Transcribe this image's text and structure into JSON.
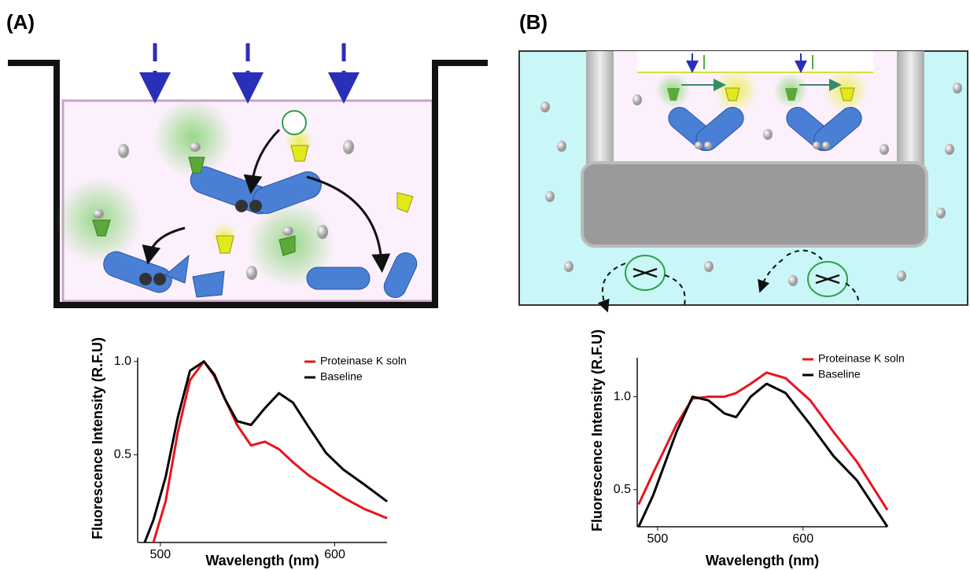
{
  "panel_labels": [
    "(A)",
    "(B)"
  ],
  "chart_data": [
    {
      "type": "line",
      "x_label": "Wavelength (nm)",
      "y_label": "Fluorescence Intensity (R.F.U)",
      "x": [
        491,
        496,
        503,
        510,
        517,
        525,
        531,
        537,
        544,
        552,
        560,
        568,
        576,
        585,
        595,
        605,
        617,
        630
      ],
      "series": [
        {
          "name": "Proteinase K soln",
          "color": "#e8141c",
          "values": [
            null,
            0.03,
            0.25,
            0.62,
            0.9,
            1.0,
            0.92,
            0.8,
            0.66,
            0.55,
            0.57,
            0.53,
            0.46,
            0.39,
            0.33,
            0.27,
            0.21,
            0.16
          ]
        },
        {
          "name": "Baseline",
          "color": "#000000",
          "values": [
            0.03,
            0.15,
            0.38,
            0.7,
            0.95,
            1.0,
            0.93,
            0.8,
            0.68,
            0.66,
            0.75,
            0.83,
            0.78,
            0.65,
            0.51,
            0.42,
            0.34,
            0.25
          ]
        }
      ],
      "xlim": [
        487,
        630
      ],
      "xticks": [
        500,
        600
      ],
      "ylim": [
        0.03,
        1.02
      ],
      "yticks": [
        0.5,
        {
          "value": 1,
          "label": "1.0"
        }
      ],
      "legend": "upper right"
    },
    {
      "type": "line",
      "x_label": "Wavelength (nm)",
      "y_label": "Fluorescence Intensity (R.F.U)",
      "x": [
        487,
        497,
        513,
        524,
        535,
        546,
        554,
        564,
        575,
        588,
        605,
        621,
        637,
        658
      ],
      "series": [
        {
          "name": "Proteinase K soln",
          "color": "#e8141c",
          "values": [
            0.42,
            0.59,
            0.85,
            0.99,
            1.0,
            1.0,
            1.02,
            1.07,
            1.13,
            1.1,
            0.98,
            0.81,
            0.65,
            0.39
          ]
        },
        {
          "name": "Baseline",
          "color": "#000000",
          "values": [
            0.3,
            0.47,
            0.81,
            1.0,
            0.98,
            0.91,
            0.89,
            1.0,
            1.07,
            1.02,
            0.85,
            0.68,
            0.55,
            0.3
          ]
        }
      ],
      "xlim": [
        486,
        658
      ],
      "xticks": [
        500,
        600
      ],
      "ylim": [
        0.3,
        1.21
      ],
      "yticks": [
        0.5,
        {
          "value": 1,
          "label": "1.0"
        }
      ],
      "legend": "upper right"
    }
  ]
}
